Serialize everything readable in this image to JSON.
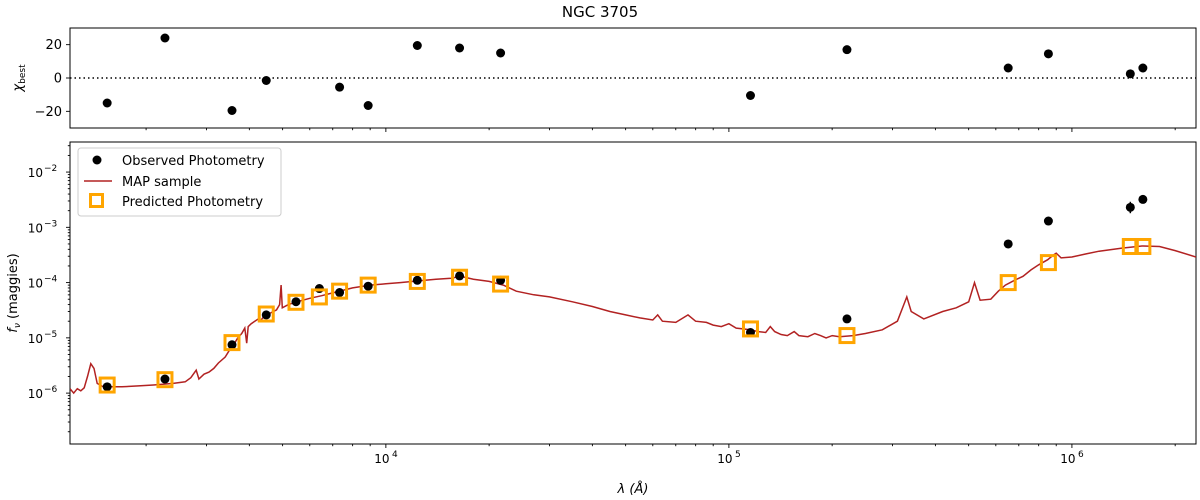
{
  "title": "NGC 3705",
  "chart_data": [
    {
      "type": "scatter",
      "panel": "residuals",
      "ylabel_main": "χ",
      "ylabel_sub": "best",
      "xscale": "log",
      "xlim": [
        1200,
        2300000
      ],
      "ylim": [
        -30,
        30
      ],
      "yticks": [
        -20,
        0,
        20
      ],
      "reference_line": 0,
      "points": [
        {
          "x": 1540,
          "y": -15
        },
        {
          "x": 2270,
          "y": 24
        },
        {
          "x": 3560,
          "y": -19.5
        },
        {
          "x": 4480,
          "y": -1.5
        },
        {
          "x": 7330,
          "y": -5.5
        },
        {
          "x": 8880,
          "y": -16.5
        },
        {
          "x": 12350,
          "y": 19.5
        },
        {
          "x": 16400,
          "y": 18
        },
        {
          "x": 21600,
          "y": 15
        },
        {
          "x": 115600,
          "y": -10.5
        },
        {
          "x": 220900,
          "y": 17
        },
        {
          "x": 652000,
          "y": 6
        },
        {
          "x": 854000,
          "y": 14.5
        },
        {
          "x": 1480000,
          "y": 2.5
        },
        {
          "x": 1610000,
          "y": 6
        }
      ]
    },
    {
      "type": "line",
      "panel": "sed",
      "xlabel": "λ (Å)",
      "ylabel": "f_ν (maggies)",
      "ylabel_main": "f",
      "ylabel_sub": "ν",
      "ylabel_rest": " (maggies)",
      "xlabel_main": "λ (",
      "xlabel_unit": "Å",
      "xlabel_close": ")",
      "xscale": "log",
      "yscale": "log",
      "xlim": [
        1200,
        2300000
      ],
      "ylim": [
        1.2e-07,
        0.035
      ],
      "xticks": [
        {
          "value": 10000,
          "base": "10",
          "exp": "4"
        },
        {
          "value": 100000,
          "base": "10",
          "exp": "5"
        },
        {
          "value": 1000000,
          "base": "10",
          "exp": "6"
        }
      ],
      "yticks": [
        {
          "value": 1e-06,
          "base": "10",
          "exp": "−6"
        },
        {
          "value": 1e-05,
          "base": "10",
          "exp": "−5"
        },
        {
          "value": 0.0001,
          "base": "10",
          "exp": "−4"
        },
        {
          "value": 0.001,
          "base": "10",
          "exp": "−3"
        },
        {
          "value": 0.01,
          "base": "10",
          "exp": "−2"
        }
      ],
      "legend_position": "upper-left",
      "legend": {
        "observed": "Observed Photometry",
        "map": "MAP sample",
        "predicted": "Predicted Photometry"
      },
      "colors": {
        "model": "#b22222",
        "predicted": "#ffa500",
        "observed": "#000000"
      },
      "observed": [
        {
          "x": 1540,
          "y": 1.3e-06
        },
        {
          "x": 2270,
          "y": 1.8e-06
        },
        {
          "x": 3560,
          "y": 7.5e-06
        },
        {
          "x": 4480,
          "y": 2.6e-05
        },
        {
          "x": 5470,
          "y": 4.5e-05
        },
        {
          "x": 6400,
          "y": 7.8e-05
        },
        {
          "x": 7330,
          "y": 6.6e-05
        },
        {
          "x": 8880,
          "y": 8.6e-05
        },
        {
          "x": 12350,
          "y": 0.00011
        },
        {
          "x": 16400,
          "y": 0.000132
        },
        {
          "x": 21600,
          "y": 0.00011
        },
        {
          "x": 115600,
          "y": 1.25e-05
        },
        {
          "x": 220900,
          "y": 2.2e-05
        },
        {
          "x": 652000,
          "y": 0.0005
        },
        {
          "x": 854000,
          "y": 0.0013
        },
        {
          "x": 1480000,
          "y": 0.0023,
          "err": [
            0.0018,
            0.0029
          ]
        },
        {
          "x": 1610000,
          "y": 0.0032
        }
      ],
      "predicted": [
        {
          "x": 1540,
          "y": 1.4e-06
        },
        {
          "x": 2270,
          "y": 1.75e-06
        },
        {
          "x": 3560,
          "y": 8.2e-06
        },
        {
          "x": 4480,
          "y": 2.7e-05
        },
        {
          "x": 5470,
          "y": 4.4e-05
        },
        {
          "x": 6400,
          "y": 5.5e-05
        },
        {
          "x": 7330,
          "y": 7e-05
        },
        {
          "x": 8880,
          "y": 9e-05
        },
        {
          "x": 12350,
          "y": 0.000105
        },
        {
          "x": 16400,
          "y": 0.000125
        },
        {
          "x": 21600,
          "y": 9.4e-05
        },
        {
          "x": 115600,
          "y": 1.45e-05
        },
        {
          "x": 220900,
          "y": 1.1e-05
        },
        {
          "x": 652000,
          "y": 0.0001
        },
        {
          "x": 854000,
          "y": 0.00023
        },
        {
          "x": 1480000,
          "y": 0.00045
        },
        {
          "x": 1610000,
          "y": 0.00045
        }
      ],
      "model_curve": [
        [
          1200,
          1.2e-06
        ],
        [
          1230,
          1e-06
        ],
        [
          1260,
          1.2e-06
        ],
        [
          1290,
          1.1e-06
        ],
        [
          1320,
          1.25e-06
        ],
        [
          1350,
          2e-06
        ],
        [
          1380,
          3.4e-06
        ],
        [
          1410,
          2.8e-06
        ],
        [
          1440,
          1.5e-06
        ],
        [
          1500,
          1.3e-06
        ],
        [
          1700,
          1.3e-06
        ],
        [
          1900,
          1.35e-06
        ],
        [
          2100,
          1.4e-06
        ],
        [
          2400,
          1.5e-06
        ],
        [
          2600,
          1.6e-06
        ],
        [
          2700,
          1.9e-06
        ],
        [
          2800,
          2.6e-06
        ],
        [
          2850,
          1.8e-06
        ],
        [
          2950,
          2.2e-06
        ],
        [
          3050,
          2.4e-06
        ],
        [
          3150,
          2.8e-06
        ],
        [
          3250,
          3.5e-06
        ],
        [
          3400,
          4.5e-06
        ],
        [
          3500,
          6e-06
        ],
        [
          3600,
          7.5e-06
        ],
        [
          3700,
          1e-05
        ],
        [
          3800,
          1.2e-05
        ],
        [
          3880,
          1.5e-05
        ],
        [
          3930,
          8e-06
        ],
        [
          3970,
          1.6e-05
        ],
        [
          4050,
          1.8e-05
        ],
        [
          4150,
          2e-05
        ],
        [
          4250,
          2.2e-05
        ],
        [
          4300,
          2e-05
        ],
        [
          4400,
          2.4e-05
        ],
        [
          4600,
          2.8e-05
        ],
        [
          4800,
          3.2e-05
        ],
        [
          4900,
          4e-05
        ],
        [
          4950,
          9e-05
        ],
        [
          4990,
          3.5e-05
        ],
        [
          5200,
          4e-05
        ],
        [
          5500,
          4.5e-05
        ],
        [
          6000,
          5.2e-05
        ],
        [
          6500,
          5.8e-05
        ],
        [
          7000,
          6.5e-05
        ],
        [
          8000,
          8e-05
        ],
        [
          9000,
          9e-05
        ],
        [
          10000,
          9.5e-05
        ],
        [
          11000,
          0.0001
        ],
        [
          12000,
          0.000105
        ],
        [
          13000,
          0.00011
        ],
        [
          14000,
          0.000115
        ],
        [
          15500,
          0.00012
        ],
        [
          16500,
          0.00013
        ],
        [
          18000,
          0.000115
        ],
        [
          20000,
          0.000105
        ],
        [
          22000,
          9e-05
        ],
        [
          24000,
          7e-05
        ],
        [
          27000,
          6e-05
        ],
        [
          30000,
          5.5e-05
        ],
        [
          35000,
          4.5e-05
        ],
        [
          40000,
          3.7e-05
        ],
        [
          45000,
          3e-05
        ],
        [
          50000,
          2.6e-05
        ],
        [
          55000,
          2.3e-05
        ],
        [
          60000,
          2.1e-05
        ],
        [
          62000,
          2.6e-05
        ],
        [
          64000,
          2e-05
        ],
        [
          70000,
          1.9e-05
        ],
        [
          76000,
          2.6e-05
        ],
        [
          80000,
          2e-05
        ],
        [
          86000,
          1.9e-05
        ],
        [
          90000,
          1.7e-05
        ],
        [
          95000,
          1.6e-05
        ],
        [
          100000,
          1.8e-05
        ],
        [
          105000,
          1.5e-05
        ],
        [
          110000,
          1.45e-05
        ],
        [
          115000,
          1.4e-05
        ],
        [
          122000,
          1.3e-05
        ],
        [
          128000,
          1.25e-05
        ],
        [
          132000,
          1.6e-05
        ],
        [
          136000,
          1.3e-05
        ],
        [
          142000,
          1.15e-05
        ],
        [
          148000,
          1.1e-05
        ],
        [
          155000,
          1.3e-05
        ],
        [
          160000,
          1.1e-05
        ],
        [
          170000,
          1.05e-05
        ],
        [
          178000,
          1.2e-05
        ],
        [
          185000,
          1.1e-05
        ],
        [
          192000,
          1e-05
        ],
        [
          200000,
          1.1e-05
        ],
        [
          210000,
          1.05e-05
        ],
        [
          230000,
          1.1e-05
        ],
        [
          250000,
          1.2e-05
        ],
        [
          280000,
          1.4e-05
        ],
        [
          310000,
          2e-05
        ],
        [
          330000,
          5.5e-05
        ],
        [
          340000,
          3e-05
        ],
        [
          370000,
          2.2e-05
        ],
        [
          420000,
          3e-05
        ],
        [
          460000,
          3.5e-05
        ],
        [
          500000,
          4.5e-05
        ],
        [
          520000,
          0.0001
        ],
        [
          540000,
          4.8e-05
        ],
        [
          580000,
          5e-05
        ],
        [
          610000,
          7e-05
        ],
        [
          640000,
          9e-05
        ],
        [
          680000,
          0.00011
        ],
        [
          720000,
          0.00013
        ],
        [
          760000,
          0.00017
        ],
        [
          800000,
          0.00021
        ],
        [
          850000,
          0.00026
        ],
        [
          880000,
          0.00031
        ],
        [
          900000,
          0.00034
        ],
        [
          930000,
          0.00028
        ],
        [
          1000000,
          0.00029
        ],
        [
          1100000,
          0.00033
        ],
        [
          1200000,
          0.00037
        ],
        [
          1400000,
          0.00042
        ],
        [
          1600000,
          0.00046
        ],
        [
          1800000,
          0.00045
        ],
        [
          2000000,
          0.00038
        ],
        [
          2300000,
          0.00029
        ]
      ]
    }
  ]
}
